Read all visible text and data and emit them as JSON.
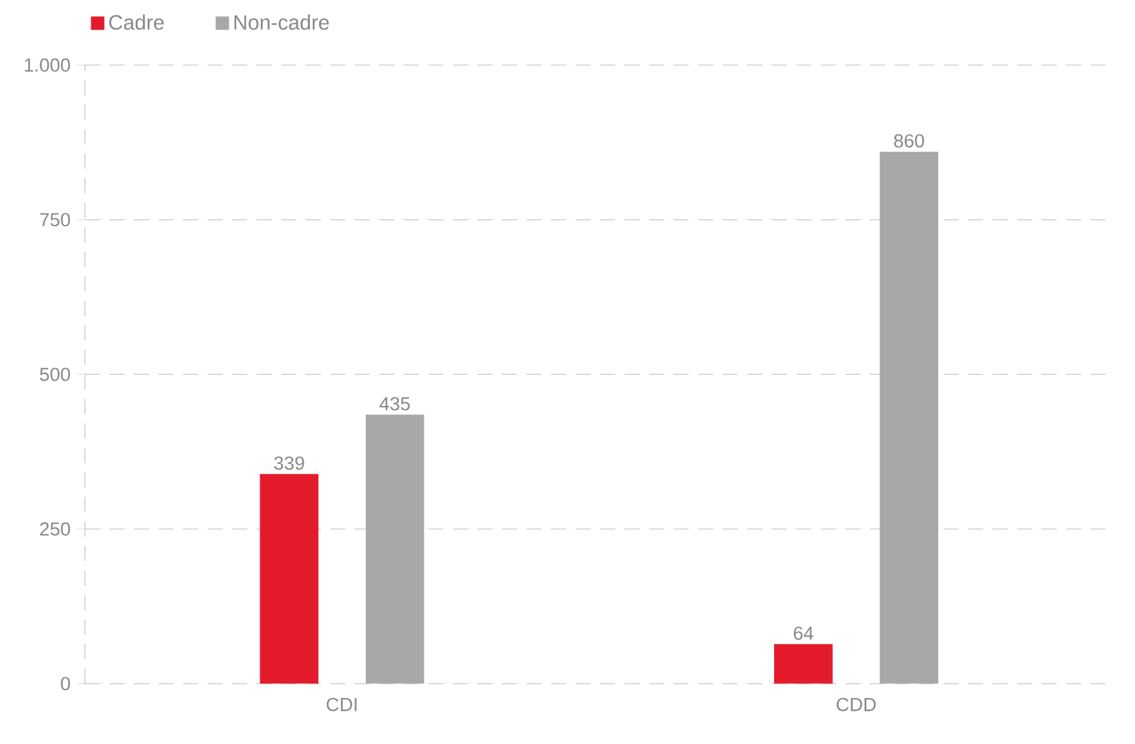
{
  "chart_data": {
    "type": "bar",
    "categories": [
      "CDI",
      "CDD"
    ],
    "series": [
      {
        "name": "Cadre",
        "color": "#e31b2b",
        "values": [
          339,
          64
        ]
      },
      {
        "name": "Non-cadre",
        "color": "#a8a8a8",
        "values": [
          435,
          860
        ]
      }
    ],
    "ylim": [
      0,
      1000
    ],
    "yticks": [
      0,
      250,
      500,
      750,
      {
        "value": 1000,
        "label": "1.000"
      }
    ],
    "grid": "y",
    "legend": "top left",
    "data_labels": true
  }
}
